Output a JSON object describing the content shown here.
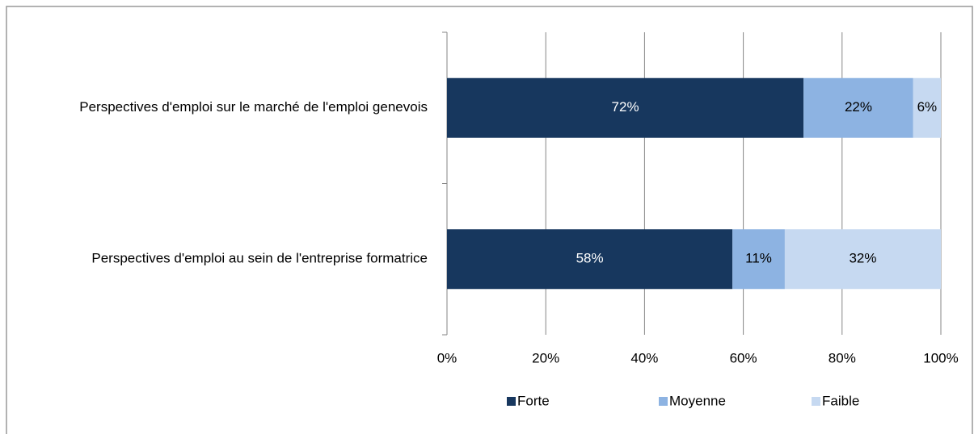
{
  "chart_data": {
    "type": "stacked_barh",
    "categories": [
      "Perspectives d'emploi sur le marché de l'emploi genevois",
      "Perspectives d'emploi au sein de l'entreprise formatrice"
    ],
    "series": [
      {
        "name": "Forte",
        "color": "#17375e",
        "values": [
          72.2,
          57.8
        ],
        "value_labels": [
          "72%",
          "58%"
        ]
      },
      {
        "name": "Moyenne",
        "color": "#8db3e2",
        "values": [
          22.2,
          10.6
        ],
        "value_labels": [
          "22%",
          "11%"
        ]
      },
      {
        "name": "Faible",
        "color": "#c6d9f1",
        "values": [
          5.6,
          31.6
        ],
        "value_labels": [
          "6%",
          "32%"
        ]
      }
    ],
    "xlim": [
      0,
      100
    ],
    "xticks": [
      {
        "value": 0,
        "label": "0%"
      },
      {
        "value": 20,
        "label": "20%"
      },
      {
        "value": 40,
        "label": "40%"
      },
      {
        "value": 60,
        "label": "60%"
      },
      {
        "value": 80,
        "label": "80%"
      },
      {
        "value": 100,
        "label": "100%"
      }
    ],
    "grid": true,
    "legend": "bottom"
  }
}
